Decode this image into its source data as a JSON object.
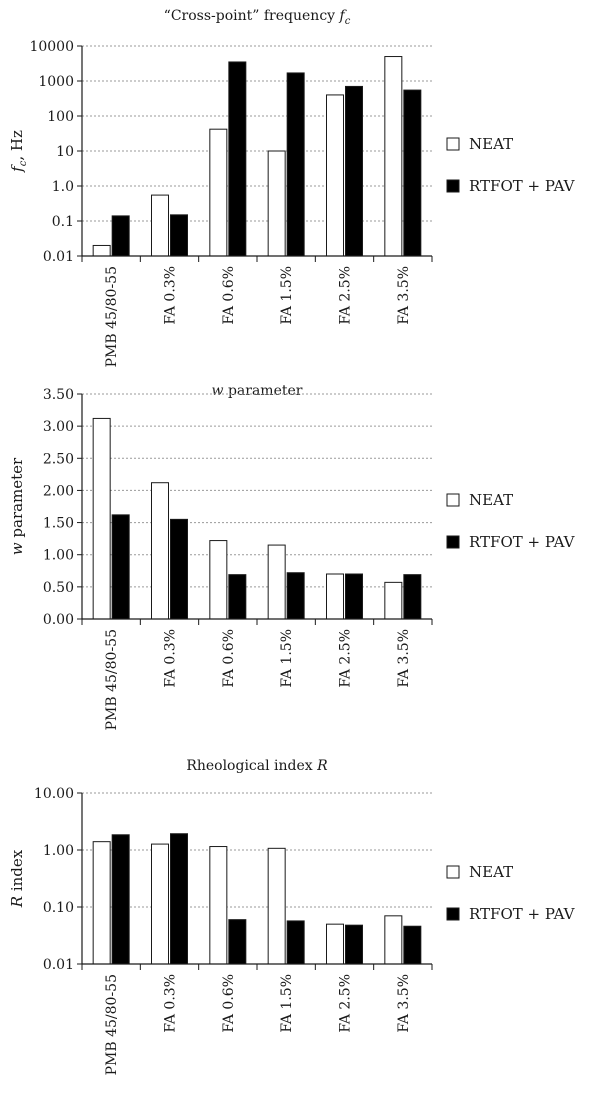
{
  "colors": {
    "neat": "#ffffff",
    "aged": "#000000",
    "grid": "#9a9a9a",
    "axis": "#1a1a1a"
  },
  "chart_data": [
    {
      "type": "bar",
      "title": "“Cross-point” frequency f",
      "title_sub": "c",
      "ylabel": "f",
      "ylabel_sub": "c",
      "ylabel_suffix": ", Hz",
      "scale": "log",
      "ylim": [
        0.01,
        10000
      ],
      "ticks": [
        0.01,
        0.1,
        1.0,
        10,
        100,
        1000,
        10000
      ],
      "tick_labels": [
        "0.01",
        "0.1",
        "1.0",
        "10",
        "100",
        "1000",
        "10000"
      ],
      "grid": "horizontal-dotted",
      "legend": "right",
      "categories": [
        "PMB 45/80-55",
        "FA 0.3%",
        "FA 0.6%",
        "FA 1.5%",
        "FA 2.5%",
        "FA 3.5%"
      ],
      "series": [
        {
          "name": "NEAT",
          "values": [
            0.02,
            0.55,
            42,
            10,
            400,
            5000
          ]
        },
        {
          "name": "RTFOT + PAV",
          "values": [
            0.14,
            0.15,
            3500,
            1700,
            700,
            550
          ]
        }
      ]
    },
    {
      "type": "bar",
      "title": "w parameter",
      "ylabel": "w parameter",
      "scale": "linear",
      "ylim": [
        0,
        3.5
      ],
      "ticks": [
        0,
        0.5,
        1.0,
        1.5,
        2.0,
        2.5,
        3.0,
        3.5
      ],
      "tick_labels": [
        "0.00",
        "0.50",
        "1.00",
        "1.50",
        "2.00",
        "2.50",
        "3.00",
        "3.50"
      ],
      "grid": "horizontal-dotted",
      "legend": "right",
      "categories": [
        "PMB 45/80-55",
        "FA 0.3%",
        "FA 0.6%",
        "FA 1.5%",
        "FA 2.5%",
        "FA 3.5%"
      ],
      "series": [
        {
          "name": "NEAT",
          "values": [
            3.12,
            2.12,
            1.22,
            1.15,
            0.7,
            0.57
          ]
        },
        {
          "name": "RTFOT + PAV",
          "values": [
            1.62,
            1.55,
            0.69,
            0.72,
            0.7,
            0.69
          ]
        }
      ]
    },
    {
      "type": "bar",
      "title": "Rheological index R",
      "ylabel": "R index",
      "scale": "log",
      "ylim": [
        0.01,
        10
      ],
      "ticks": [
        0.01,
        0.1,
        1,
        10
      ],
      "tick_labels": [
        "0.01",
        "0.10",
        "1.00",
        "10.00"
      ],
      "grid": "horizontal-dotted",
      "legend": "right",
      "categories": [
        "PMB 45/80-55",
        "FA 0.3%",
        "FA 0.6%",
        "FA 1.5%",
        "FA 2.5%",
        "FA 3.5%"
      ],
      "series": [
        {
          "name": "NEAT",
          "values": [
            1.4,
            1.27,
            1.15,
            1.07,
            0.05,
            0.07
          ]
        },
        {
          "name": "RTFOT + PAV",
          "values": [
            1.85,
            1.93,
            0.06,
            0.057,
            0.048,
            0.046
          ]
        }
      ]
    }
  ]
}
